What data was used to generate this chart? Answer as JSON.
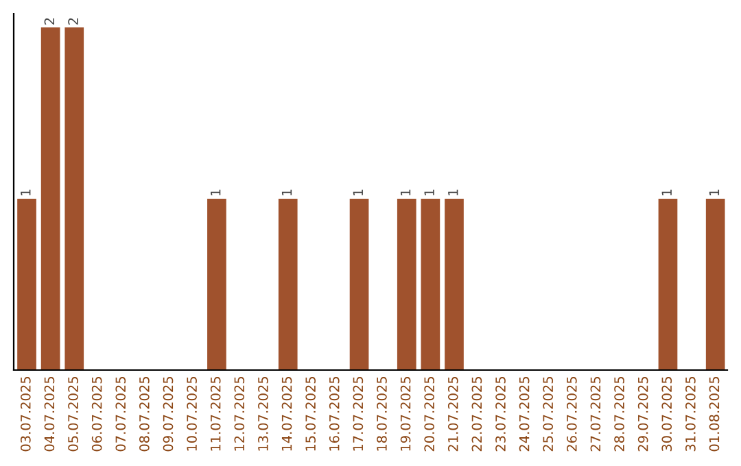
{
  "chart_data": {
    "type": "bar",
    "categories": [
      "03.07.2025",
      "04.07.2025",
      "05.07.2025",
      "06.07.2025",
      "07.07.2025",
      "08.07.2025",
      "09.07.2025",
      "10.07.2025",
      "11.07.2025",
      "12.07.2025",
      "13.07.2025",
      "14.07.2025",
      "15.07.2025",
      "16.07.2025",
      "17.07.2025",
      "18.07.2025",
      "19.07.2025",
      "20.07.2025",
      "21.07.2025",
      "22.07.2025",
      "23.07.2025",
      "24.07.2025",
      "25.07.2025",
      "26.07.2025",
      "27.07.2025",
      "28.07.2025",
      "29.07.2025",
      "30.07.2025",
      "31.07.2025",
      "01.08.2025"
    ],
    "values": [
      1,
      2,
      2,
      0,
      0,
      0,
      0,
      0,
      1,
      0,
      0,
      1,
      0,
      0,
      1,
      0,
      1,
      1,
      1,
      0,
      0,
      0,
      0,
      0,
      0,
      0,
      0,
      1,
      0,
      1
    ],
    "value_labels": [
      "1",
      "2",
      "2",
      null,
      null,
      null,
      null,
      null,
      "1",
      null,
      null,
      "1",
      null,
      null,
      "1",
      null,
      "1",
      "1",
      "1",
      null,
      null,
      null,
      null,
      null,
      null,
      null,
      null,
      "1",
      null,
      "1"
    ],
    "color": "#a0522d",
    "ylim": [
      0,
      2.08
    ],
    "tick_labels": "x",
    "grid": false,
    "legend": false
  }
}
